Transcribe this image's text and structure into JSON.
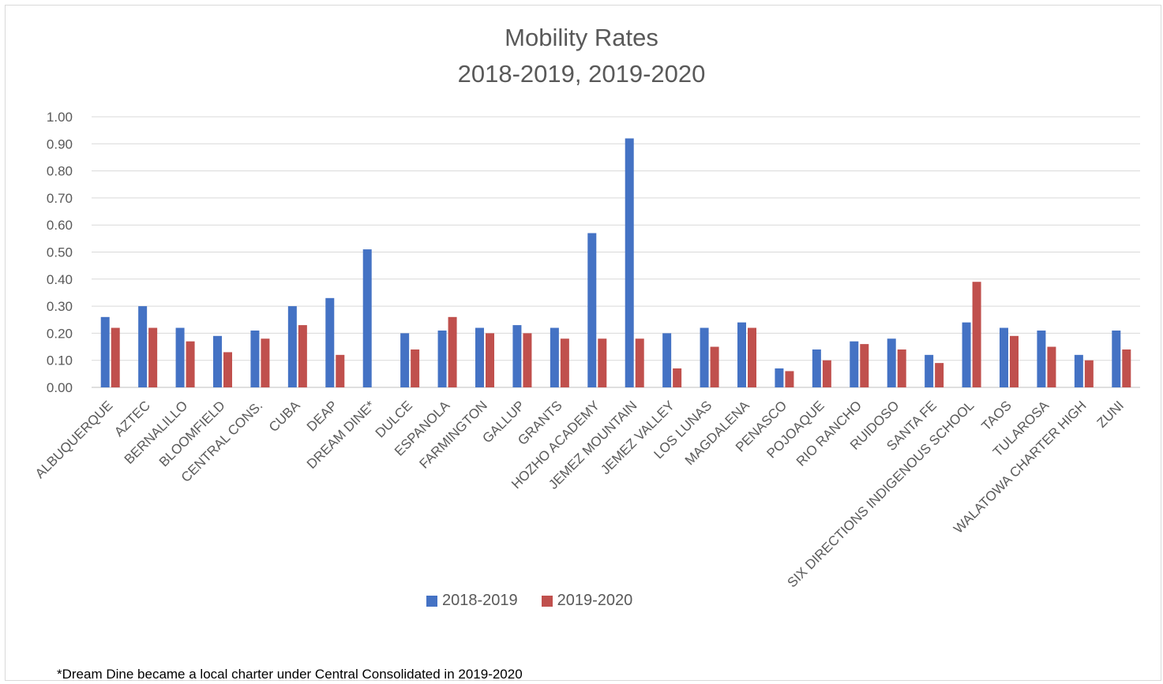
{
  "chart_data": {
    "type": "bar",
    "title": "Mobility Rates",
    "subtitle": "2018-2019, 2019-2020",
    "ylim": [
      0,
      1.0
    ],
    "yticks": [
      "0.00",
      "0.10",
      "0.20",
      "0.30",
      "0.40",
      "0.50",
      "0.60",
      "0.70",
      "0.80",
      "0.90",
      "1.00"
    ],
    "grid": true,
    "legend_position": "bottom",
    "categories": [
      "ALBUQUERQUE",
      "AZTEC",
      "BERNALILLO",
      "BLOOMFIELD",
      "CENTRAL CONS.",
      "CUBA",
      "DEAP",
      "DREAM DINE*",
      "DULCE",
      "ESPANOLA",
      "FARMINGTON",
      "GALLUP",
      "GRANTS",
      "HOZHO ACADEMY",
      "JEMEZ MOUNTAIN",
      "JEMEZ VALLEY",
      "LOS LUNAS",
      "MAGDALENA",
      "PENASCO",
      "POJOAQUE",
      "RIO RANCHO",
      "RUIDOSO",
      "SANTA FE",
      "SIX DIRECTIONS INDIGENOUS SCHOOL",
      "TAOS",
      "TULAROSA",
      "WALATOWA CHARTER HIGH",
      "ZUNI"
    ],
    "series": [
      {
        "name": "2018-2019",
        "color": "#4472c4",
        "values": [
          0.26,
          0.3,
          0.22,
          0.19,
          0.21,
          0.3,
          0.33,
          0.51,
          0.2,
          0.21,
          0.22,
          0.23,
          0.22,
          0.57,
          0.92,
          0.2,
          0.22,
          0.24,
          0.07,
          0.14,
          0.17,
          0.18,
          0.12,
          0.24,
          0.22,
          0.21,
          0.12,
          0.21
        ]
      },
      {
        "name": "2019-2020",
        "color": "#c0504d",
        "values": [
          0.22,
          0.22,
          0.17,
          0.13,
          0.18,
          0.23,
          0.12,
          null,
          0.14,
          0.26,
          0.2,
          0.2,
          0.18,
          0.18,
          0.18,
          0.07,
          0.15,
          0.22,
          0.06,
          0.1,
          0.16,
          0.14,
          0.09,
          0.39,
          0.19,
          0.15,
          0.1,
          0.14
        ]
      }
    ]
  },
  "footnote": "*Dream Dine became a local charter under Central Consolidated in 2019-2020"
}
